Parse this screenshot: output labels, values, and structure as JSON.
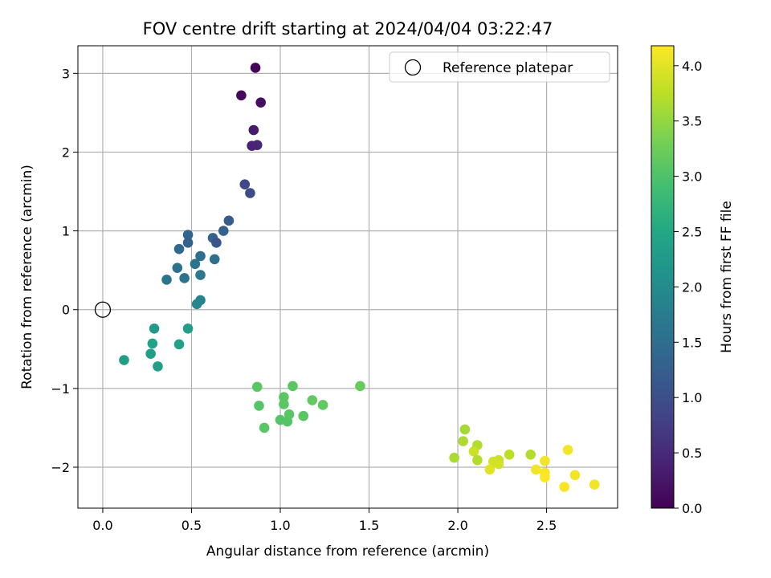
{
  "chart_data": {
    "type": "scatter",
    "title": "FOV centre drift starting at 2024/04/04 03:22:47",
    "xlabel": "Angular distance from reference (arcmin)",
    "ylabel": "Rotation from reference (arcmin)",
    "xlim": [
      -0.14,
      2.9
    ],
    "ylim": [
      -2.52,
      3.35
    ],
    "xticks": [
      0.0,
      0.5,
      1.0,
      1.5,
      2.0,
      2.5
    ],
    "xtick_labels": [
      "0.0",
      "0.5",
      "1.0",
      "1.5",
      "2.0",
      "2.5"
    ],
    "yticks": [
      -2,
      -1,
      0,
      1,
      2,
      3
    ],
    "ytick_labels": [
      "−2",
      "−1",
      "0",
      "1",
      "2",
      "3"
    ],
    "grid": true,
    "legend": {
      "position": "top-right",
      "entries": [
        "Reference platepar"
      ]
    },
    "reference_point": {
      "x": 0.0,
      "y": 0.0
    },
    "colorbar": {
      "label": "Hours from first FF file",
      "colormap": "viridis",
      "range": [
        0.0,
        4.18
      ],
      "ticks": [
        0.0,
        0.5,
        1.0,
        1.5,
        2.0,
        2.5,
        3.0,
        3.5,
        4.0
      ],
      "tick_labels": [
        "0.0",
        "0.5",
        "1.0",
        "1.5",
        "2.0",
        "2.5",
        "3.0",
        "3.5",
        "4.0"
      ]
    },
    "points": [
      {
        "x": 0.86,
        "y": 3.07,
        "c": 0.05
      },
      {
        "x": 0.78,
        "y": 2.72,
        "c": 0.1
      },
      {
        "x": 0.89,
        "y": 2.63,
        "c": 0.15
      },
      {
        "x": 0.85,
        "y": 2.28,
        "c": 0.3
      },
      {
        "x": 0.84,
        "y": 2.08,
        "c": 0.4
      },
      {
        "x": 0.87,
        "y": 2.09,
        "c": 0.45
      },
      {
        "x": 0.8,
        "y": 1.59,
        "c": 0.9
      },
      {
        "x": 0.83,
        "y": 1.48,
        "c": 0.95
      },
      {
        "x": 0.71,
        "y": 1.13,
        "c": 1.2
      },
      {
        "x": 0.68,
        "y": 1.0,
        "c": 1.3
      },
      {
        "x": 0.62,
        "y": 0.91,
        "c": 1.3
      },
      {
        "x": 0.64,
        "y": 0.85,
        "c": 1.1
      },
      {
        "x": 0.48,
        "y": 0.95,
        "c": 1.35
      },
      {
        "x": 0.48,
        "y": 0.85,
        "c": 1.3
      },
      {
        "x": 0.43,
        "y": 0.77,
        "c": 1.4
      },
      {
        "x": 0.55,
        "y": 0.68,
        "c": 1.5
      },
      {
        "x": 0.63,
        "y": 0.64,
        "c": 1.55
      },
      {
        "x": 0.52,
        "y": 0.58,
        "c": 1.6
      },
      {
        "x": 0.42,
        "y": 0.53,
        "c": 1.55
      },
      {
        "x": 0.55,
        "y": 0.44,
        "c": 1.65
      },
      {
        "x": 0.46,
        "y": 0.4,
        "c": 1.6
      },
      {
        "x": 0.36,
        "y": 0.38,
        "c": 1.6
      },
      {
        "x": 0.55,
        "y": 0.12,
        "c": 1.85
      },
      {
        "x": 0.53,
        "y": 0.07,
        "c": 1.9
      },
      {
        "x": 0.29,
        "y": -0.24,
        "c": 2.25
      },
      {
        "x": 0.48,
        "y": -0.24,
        "c": 2.3
      },
      {
        "x": 0.28,
        "y": -0.43,
        "c": 2.4
      },
      {
        "x": 0.43,
        "y": -0.44,
        "c": 2.35
      },
      {
        "x": 0.27,
        "y": -0.56,
        "c": 2.3
      },
      {
        "x": 0.12,
        "y": -0.64,
        "c": 2.3
      },
      {
        "x": 0.31,
        "y": -0.72,
        "c": 2.35
      },
      {
        "x": 0.87,
        "y": -0.98,
        "c": 3.1
      },
      {
        "x": 1.07,
        "y": -0.97,
        "c": 3.1
      },
      {
        "x": 1.45,
        "y": -0.97,
        "c": 3.2
      },
      {
        "x": 1.02,
        "y": -1.11,
        "c": 3.1
      },
      {
        "x": 1.18,
        "y": -1.15,
        "c": 3.15
      },
      {
        "x": 1.02,
        "y": -1.2,
        "c": 3.1
      },
      {
        "x": 0.88,
        "y": -1.22,
        "c": 3.05
      },
      {
        "x": 1.24,
        "y": -1.21,
        "c": 3.15
      },
      {
        "x": 1.05,
        "y": -1.33,
        "c": 3.1
      },
      {
        "x": 1.13,
        "y": -1.35,
        "c": 3.1
      },
      {
        "x": 1.0,
        "y": -1.4,
        "c": 3.05
      },
      {
        "x": 1.04,
        "y": -1.42,
        "c": 3.05
      },
      {
        "x": 0.91,
        "y": -1.5,
        "c": 3.1
      },
      {
        "x": 2.04,
        "y": -1.52,
        "c": 3.6
      },
      {
        "x": 2.03,
        "y": -1.67,
        "c": 3.65
      },
      {
        "x": 2.11,
        "y": -1.72,
        "c": 3.7
      },
      {
        "x": 2.09,
        "y": -1.8,
        "c": 3.85
      },
      {
        "x": 2.29,
        "y": -1.84,
        "c": 3.75
      },
      {
        "x": 2.41,
        "y": -1.84,
        "c": 3.7
      },
      {
        "x": 1.98,
        "y": -1.88,
        "c": 3.65
      },
      {
        "x": 2.11,
        "y": -1.91,
        "c": 3.7
      },
      {
        "x": 2.23,
        "y": -1.91,
        "c": 3.85
      },
      {
        "x": 2.2,
        "y": -1.93,
        "c": 3.9
      },
      {
        "x": 2.23,
        "y": -1.96,
        "c": 3.9
      },
      {
        "x": 2.18,
        "y": -2.03,
        "c": 4.0
      },
      {
        "x": 2.62,
        "y": -1.78,
        "c": 4.1
      },
      {
        "x": 2.49,
        "y": -1.92,
        "c": 4.1
      },
      {
        "x": 2.44,
        "y": -2.03,
        "c": 4.1
      },
      {
        "x": 2.49,
        "y": -2.07,
        "c": 4.15
      },
      {
        "x": 2.66,
        "y": -2.1,
        "c": 4.1
      },
      {
        "x": 2.49,
        "y": -2.13,
        "c": 4.2
      },
      {
        "x": 2.77,
        "y": -2.22,
        "c": 4.1
      },
      {
        "x": 2.6,
        "y": -2.25,
        "c": 4.15
      }
    ]
  }
}
